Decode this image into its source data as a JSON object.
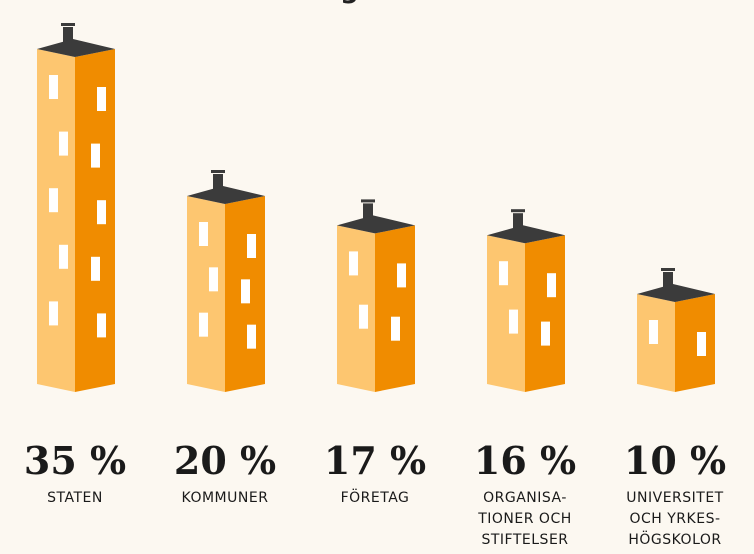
{
  "chart_data": {
    "type": "bar",
    "title": "arbetsgivarsektor",
    "categories": [
      "STATEN",
      "KOMMUNER",
      "FÖRETAG",
      "ORGANISA-\nTIONER OCH\nSTIFTELSER",
      "UNIVERSITET\nOCH YRKES-\nHÖGSKOLOR"
    ],
    "values": [
      35,
      20,
      17,
      16,
      10
    ],
    "value_labels": [
      "35 %",
      "20 %",
      "17 %",
      "16 %",
      "10 %"
    ],
    "colors": {
      "left": "#fdc670",
      "right": "#f08c00",
      "roof": "#3b3b3b"
    }
  }
}
